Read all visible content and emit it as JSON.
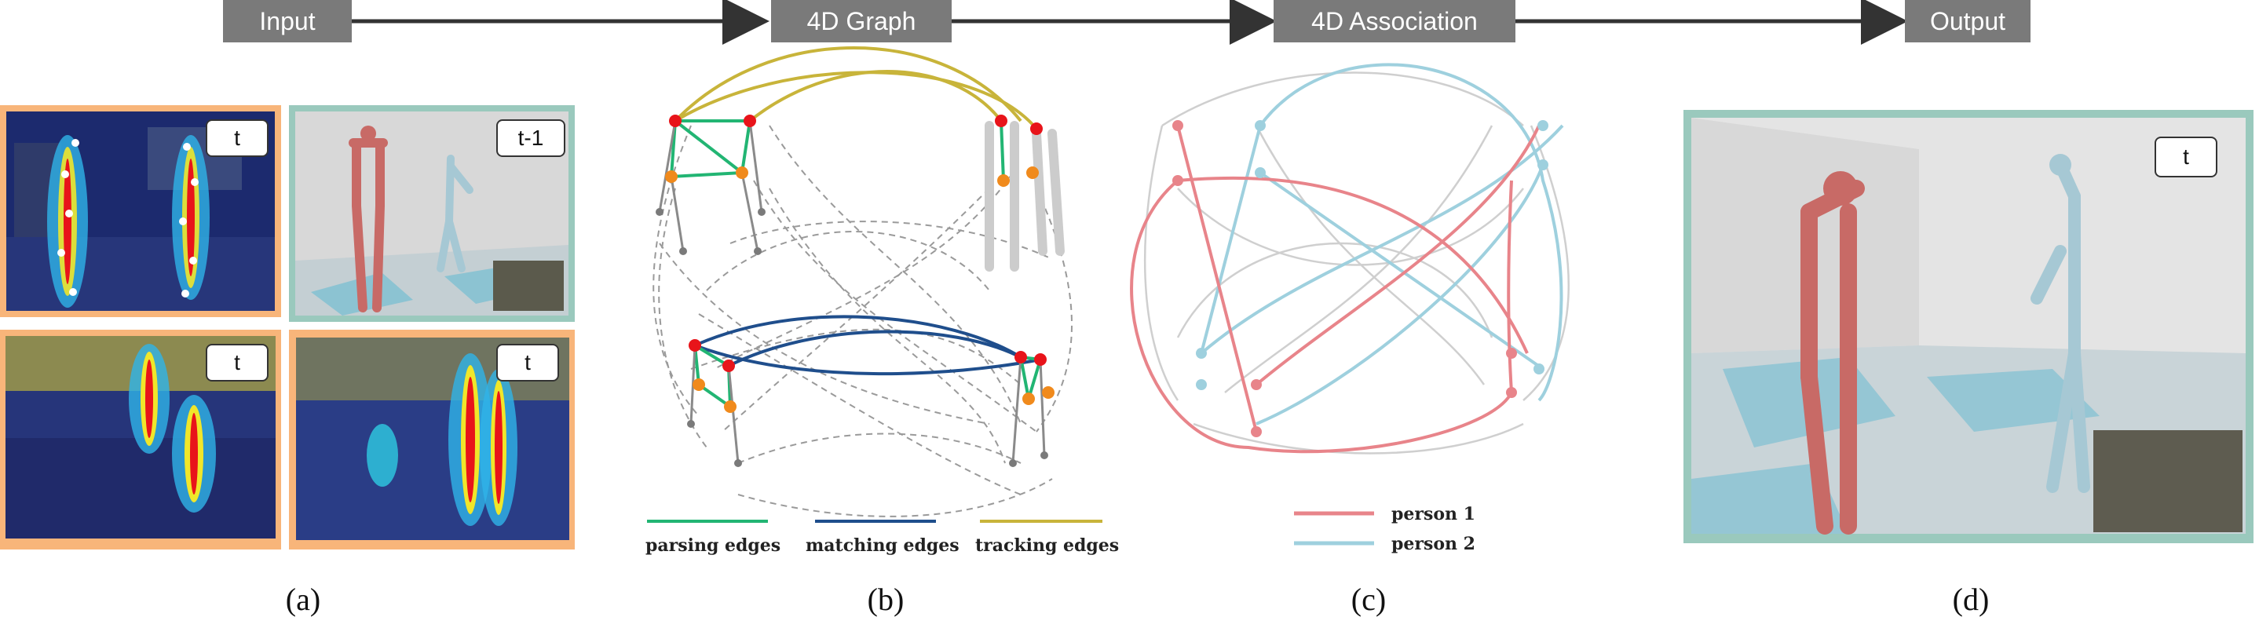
{
  "pipeline": {
    "stages": [
      "Input",
      "4D Graph",
      "4D Association",
      "Output"
    ]
  },
  "panel_a": {
    "views": [
      {
        "tag": "t"
      },
      {
        "tag": "t-1"
      },
      {
        "tag": "t"
      },
      {
        "tag": "t"
      }
    ]
  },
  "panel_b": {
    "legend": [
      {
        "label": "parsing edges",
        "color": "#22b573"
      },
      {
        "label": "matching edges",
        "color": "#1f4e8c"
      },
      {
        "label": "tracking edges",
        "color": "#c8b43a"
      }
    ]
  },
  "panel_c": {
    "legend": [
      {
        "label": "person 1",
        "color": "#e8848a"
      },
      {
        "label": "person 2",
        "color": "#9ed0de"
      }
    ]
  },
  "panel_d": {
    "tag": "t"
  },
  "captions": [
    "(a)",
    "(b)",
    "(c)",
    "(d)"
  ],
  "colors": {
    "input_frame": "#f8b57a",
    "teal_frame": "#9ac9bd",
    "stage_box": "#7a7a7a",
    "joint_red": "#e8141a",
    "joint_orange": "#f08a1c"
  }
}
